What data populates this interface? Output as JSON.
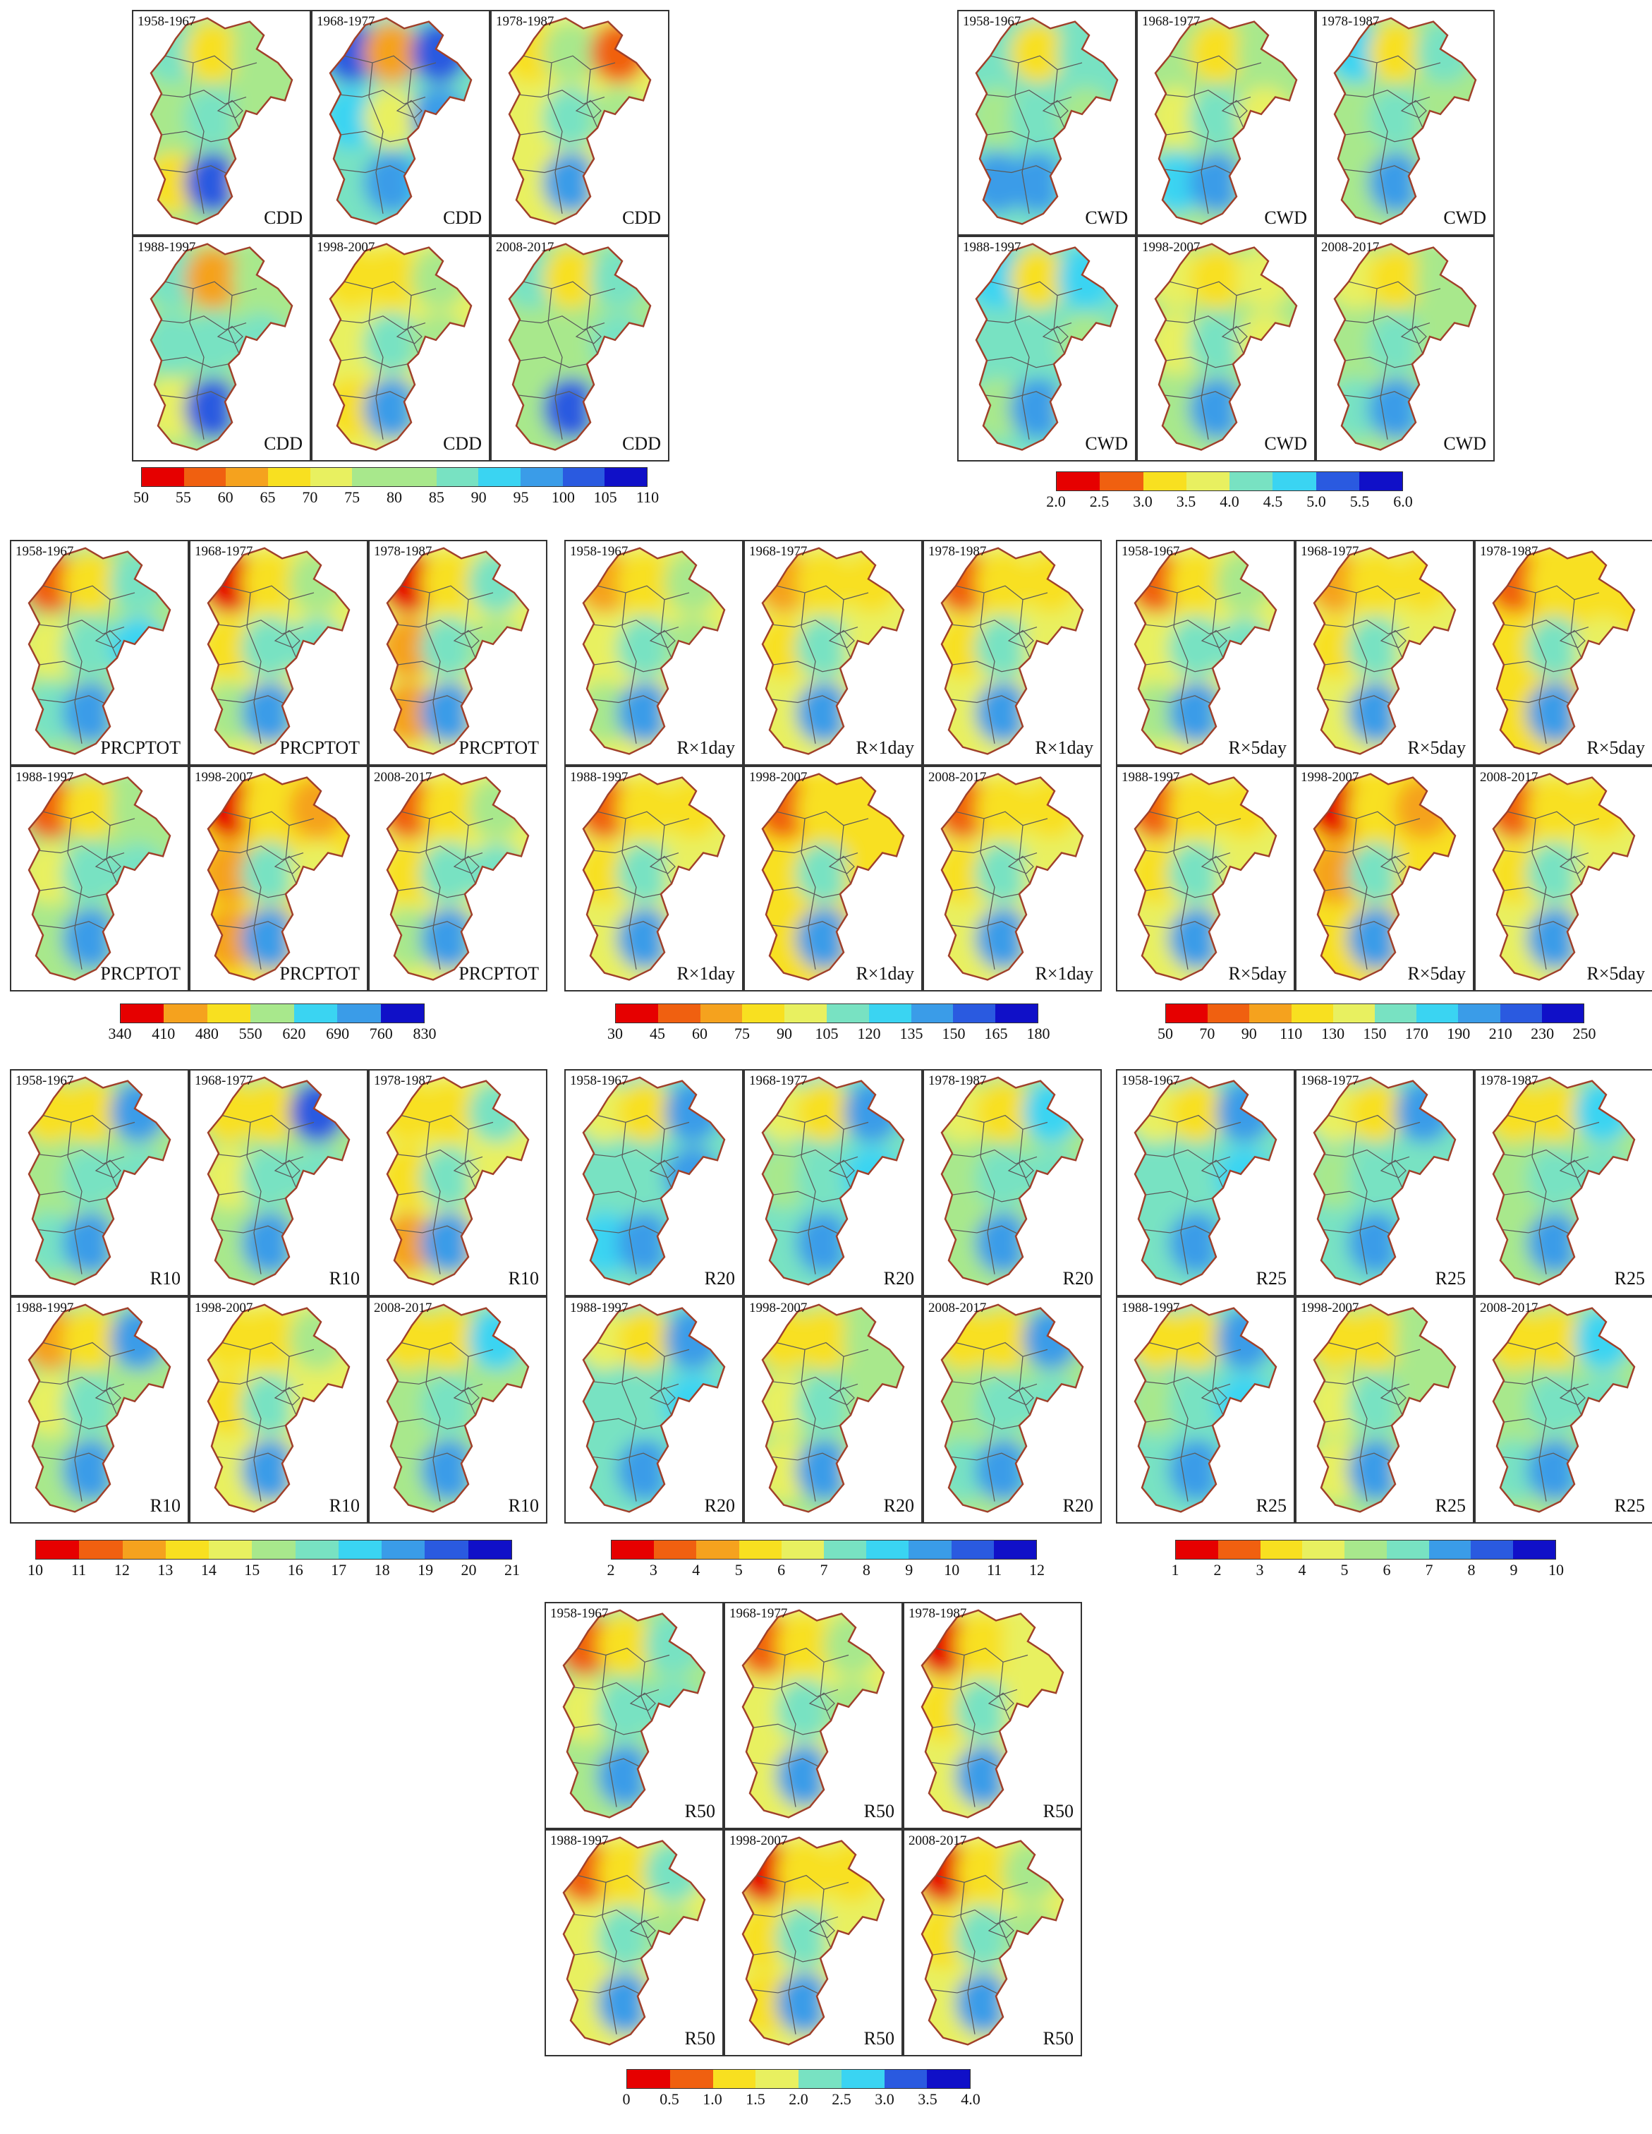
{
  "periods": [
    "1958-1967",
    "1968-1977",
    "1978-1987",
    "1988-1997",
    "1998-2007",
    "2008-2017"
  ],
  "palette": [
    "#e60000",
    "#f06010",
    "#f5a21e",
    "#f8e020",
    "#e8f060",
    "#a8e88c",
    "#78e2c2",
    "#3ad4f2",
    "#3a9ce8",
    "#2a5ae0",
    "#1010c8"
  ],
  "groups": [
    {
      "index": "CDD",
      "ticks": [
        "50",
        "55",
        "60",
        "65",
        "70",
        "75",
        "80",
        "85",
        "90",
        "95",
        "100",
        "105",
        "110"
      ],
      "heat": [
        [
          [
            0.55,
            0.25,
            0.45
          ],
          [
            0.5,
            0.55,
            0.5
          ],
          [
            0.3,
            0.85,
            0.4
          ]
        ],
        [
          [
            0.85,
            0.15,
            0.9
          ],
          [
            0.7,
            0.4,
            0.8
          ],
          [
            0.55,
            0.75,
            0.65
          ]
        ],
        [
          [
            0.3,
            0.5,
            0.1
          ],
          [
            0.4,
            0.6,
            0.45
          ],
          [
            0.35,
            0.8,
            0.4
          ]
        ],
        [
          [
            0.6,
            0.2,
            0.5
          ],
          [
            0.55,
            0.55,
            0.55
          ],
          [
            0.4,
            0.85,
            0.45
          ]
        ],
        [
          [
            0.3,
            0.3,
            0.45
          ],
          [
            0.35,
            0.55,
            0.5
          ],
          [
            0.3,
            0.8,
            0.45
          ]
        ],
        [
          [
            0.55,
            0.25,
            0.55
          ],
          [
            0.5,
            0.5,
            0.6
          ],
          [
            0.45,
            0.85,
            0.5
          ]
        ]
      ]
    },
    {
      "index": "CWD",
      "ticks": [
        "2.0",
        "2.5",
        "3.0",
        "3.5",
        "4.0",
        "4.5",
        "5.0",
        "5.5",
        "6.0"
      ],
      "heat": [
        [
          [
            0.6,
            0.3,
            0.6
          ],
          [
            0.5,
            0.6,
            0.5
          ],
          [
            0.75,
            0.8,
            0.6
          ]
        ],
        [
          [
            0.45,
            0.3,
            0.5
          ],
          [
            0.4,
            0.55,
            0.4
          ],
          [
            0.65,
            0.8,
            0.5
          ]
        ],
        [
          [
            0.7,
            0.25,
            0.6
          ],
          [
            0.5,
            0.55,
            0.45
          ],
          [
            0.45,
            0.8,
            0.5
          ]
        ],
        [
          [
            0.7,
            0.3,
            0.65
          ],
          [
            0.55,
            0.55,
            0.5
          ],
          [
            0.5,
            0.8,
            0.5
          ]
        ],
        [
          [
            0.35,
            0.3,
            0.4
          ],
          [
            0.35,
            0.55,
            0.35
          ],
          [
            0.45,
            0.8,
            0.5
          ]
        ],
        [
          [
            0.4,
            0.3,
            0.45
          ],
          [
            0.45,
            0.55,
            0.45
          ],
          [
            0.55,
            0.8,
            0.55
          ]
        ]
      ]
    },
    {
      "index": "PRCPTOT",
      "ticks": [
        "340",
        "410",
        "480",
        "550",
        "620",
        "690",
        "760",
        "830"
      ],
      "heat": [
        [
          [
            0.1,
            0.3,
            0.55
          ],
          [
            0.4,
            0.55,
            0.7
          ],
          [
            0.55,
            0.8,
            0.5
          ]
        ],
        [
          [
            0.0,
            0.3,
            0.5
          ],
          [
            0.3,
            0.55,
            0.6
          ],
          [
            0.45,
            0.8,
            0.45
          ]
        ],
        [
          [
            0.0,
            0.25,
            0.55
          ],
          [
            0.2,
            0.55,
            0.5
          ],
          [
            0.2,
            0.8,
            0.35
          ]
        ],
        [
          [
            0.1,
            0.3,
            0.5
          ],
          [
            0.35,
            0.55,
            0.6
          ],
          [
            0.45,
            0.8,
            0.45
          ]
        ],
        [
          [
            0.0,
            0.3,
            0.2
          ],
          [
            0.15,
            0.55,
            0.35
          ],
          [
            0.2,
            0.8,
            0.3
          ]
        ],
        [
          [
            0.05,
            0.3,
            0.45
          ],
          [
            0.3,
            0.55,
            0.55
          ],
          [
            0.45,
            0.8,
            0.45
          ]
        ]
      ]
    },
    {
      "index": "R×1day",
      "ticks": [
        "30",
        "45",
        "60",
        "75",
        "90",
        "105",
        "120",
        "135",
        "150",
        "165",
        "180"
      ],
      "heat": [
        [
          [
            0.15,
            0.3,
            0.45
          ],
          [
            0.35,
            0.55,
            0.5
          ],
          [
            0.45,
            0.8,
            0.4
          ]
        ],
        [
          [
            0.15,
            0.3,
            0.3
          ],
          [
            0.3,
            0.55,
            0.4
          ],
          [
            0.4,
            0.8,
            0.35
          ]
        ],
        [
          [
            0.05,
            0.3,
            0.3
          ],
          [
            0.3,
            0.55,
            0.4
          ],
          [
            0.35,
            0.8,
            0.35
          ]
        ],
        [
          [
            0.1,
            0.3,
            0.3
          ],
          [
            0.3,
            0.55,
            0.35
          ],
          [
            0.35,
            0.8,
            0.35
          ]
        ],
        [
          [
            0.05,
            0.3,
            0.25
          ],
          [
            0.25,
            0.55,
            0.3
          ],
          [
            0.3,
            0.8,
            0.3
          ]
        ],
        [
          [
            0.05,
            0.3,
            0.3
          ],
          [
            0.3,
            0.55,
            0.35
          ],
          [
            0.35,
            0.8,
            0.35
          ]
        ]
      ]
    },
    {
      "index": "R×5day",
      "ticks": [
        "50",
        "70",
        "90",
        "110",
        "130",
        "150",
        "170",
        "190",
        "210",
        "230",
        "250"
      ],
      "heat": [
        [
          [
            0.1,
            0.3,
            0.45
          ],
          [
            0.35,
            0.55,
            0.55
          ],
          [
            0.45,
            0.8,
            0.45
          ]
        ],
        [
          [
            0.15,
            0.3,
            0.3
          ],
          [
            0.3,
            0.55,
            0.4
          ],
          [
            0.35,
            0.8,
            0.35
          ]
        ],
        [
          [
            0.05,
            0.3,
            0.25
          ],
          [
            0.25,
            0.55,
            0.35
          ],
          [
            0.3,
            0.8,
            0.3
          ]
        ],
        [
          [
            0.1,
            0.3,
            0.3
          ],
          [
            0.3,
            0.55,
            0.4
          ],
          [
            0.35,
            0.8,
            0.35
          ]
        ],
        [
          [
            0.0,
            0.3,
            0.2
          ],
          [
            0.2,
            0.55,
            0.3
          ],
          [
            0.25,
            0.8,
            0.3
          ]
        ],
        [
          [
            0.05,
            0.3,
            0.3
          ],
          [
            0.25,
            0.55,
            0.35
          ],
          [
            0.35,
            0.8,
            0.35
          ]
        ]
      ]
    },
    {
      "index": "R10",
      "ticks": [
        "10",
        "11",
        "12",
        "13",
        "14",
        "15",
        "16",
        "17",
        "18",
        "19",
        "20",
        "21"
      ],
      "heat": [
        [
          [
            0.3,
            0.3,
            0.75
          ],
          [
            0.45,
            0.55,
            0.55
          ],
          [
            0.55,
            0.8,
            0.5
          ]
        ],
        [
          [
            0.25,
            0.3,
            0.85
          ],
          [
            0.4,
            0.55,
            0.55
          ],
          [
            0.5,
            0.8,
            0.45
          ]
        ],
        [
          [
            0.25,
            0.3,
            0.6
          ],
          [
            0.3,
            0.55,
            0.4
          ],
          [
            0.2,
            0.8,
            0.3
          ]
        ],
        [
          [
            0.2,
            0.3,
            0.75
          ],
          [
            0.4,
            0.55,
            0.5
          ],
          [
            0.5,
            0.8,
            0.5
          ]
        ],
        [
          [
            0.25,
            0.3,
            0.5
          ],
          [
            0.3,
            0.55,
            0.35
          ],
          [
            0.35,
            0.8,
            0.35
          ]
        ],
        [
          [
            0.3,
            0.3,
            0.65
          ],
          [
            0.45,
            0.55,
            0.5
          ],
          [
            0.5,
            0.8,
            0.5
          ]
        ]
      ]
    },
    {
      "index": "R20",
      "ticks": [
        "2",
        "3",
        "4",
        "5",
        "6",
        "7",
        "8",
        "9",
        "10",
        "11",
        "12"
      ],
      "heat": [
        [
          [
            0.35,
            0.3,
            0.8
          ],
          [
            0.6,
            0.55,
            0.75
          ],
          [
            0.65,
            0.8,
            0.6
          ]
        ],
        [
          [
            0.35,
            0.3,
            0.8
          ],
          [
            0.5,
            0.55,
            0.65
          ],
          [
            0.55,
            0.8,
            0.55
          ]
        ],
        [
          [
            0.35,
            0.3,
            0.65
          ],
          [
            0.45,
            0.55,
            0.55
          ],
          [
            0.45,
            0.8,
            0.45
          ]
        ],
        [
          [
            0.35,
            0.3,
            0.8
          ],
          [
            0.55,
            0.55,
            0.7
          ],
          [
            0.6,
            0.8,
            0.6
          ]
        ],
        [
          [
            0.3,
            0.3,
            0.5
          ],
          [
            0.4,
            0.55,
            0.45
          ],
          [
            0.4,
            0.8,
            0.4
          ]
        ],
        [
          [
            0.3,
            0.3,
            0.75
          ],
          [
            0.5,
            0.55,
            0.6
          ],
          [
            0.55,
            0.8,
            0.55
          ]
        ]
      ]
    },
    {
      "index": "R25",
      "ticks": [
        "1",
        "2",
        "3",
        "4",
        "5",
        "6",
        "7",
        "8",
        "9",
        "10"
      ],
      "heat": [
        [
          [
            0.35,
            0.3,
            0.75
          ],
          [
            0.55,
            0.55,
            0.65
          ],
          [
            0.6,
            0.8,
            0.55
          ]
        ],
        [
          [
            0.35,
            0.3,
            0.75
          ],
          [
            0.5,
            0.55,
            0.6
          ],
          [
            0.55,
            0.8,
            0.55
          ]
        ],
        [
          [
            0.3,
            0.3,
            0.65
          ],
          [
            0.45,
            0.55,
            0.55
          ],
          [
            0.45,
            0.8,
            0.45
          ]
        ],
        [
          [
            0.3,
            0.3,
            0.75
          ],
          [
            0.5,
            0.55,
            0.65
          ],
          [
            0.55,
            0.8,
            0.55
          ]
        ],
        [
          [
            0.25,
            0.3,
            0.5
          ],
          [
            0.4,
            0.55,
            0.45
          ],
          [
            0.4,
            0.8,
            0.4
          ]
        ],
        [
          [
            0.25,
            0.3,
            0.7
          ],
          [
            0.5,
            0.55,
            0.6
          ],
          [
            0.55,
            0.8,
            0.55
          ]
        ]
      ]
    },
    {
      "index": "R50",
      "ticks": [
        "0",
        "0.5",
        "1.0",
        "1.5",
        "2.0",
        "2.5",
        "3.0",
        "3.5",
        "4.0"
      ],
      "heat": [
        [
          [
            0.1,
            0.3,
            0.6
          ],
          [
            0.4,
            0.55,
            0.55
          ],
          [
            0.45,
            0.8,
            0.45
          ]
        ],
        [
          [
            0.1,
            0.3,
            0.5
          ],
          [
            0.35,
            0.55,
            0.45
          ],
          [
            0.4,
            0.8,
            0.4
          ]
        ],
        [
          [
            0.0,
            0.3,
            0.4
          ],
          [
            0.3,
            0.55,
            0.4
          ],
          [
            0.35,
            0.8,
            0.35
          ]
        ],
        [
          [
            0.05,
            0.3,
            0.55
          ],
          [
            0.35,
            0.55,
            0.5
          ],
          [
            0.4,
            0.8,
            0.4
          ]
        ],
        [
          [
            0.0,
            0.3,
            0.3
          ],
          [
            0.25,
            0.55,
            0.35
          ],
          [
            0.3,
            0.8,
            0.35
          ]
        ],
        [
          [
            0.0,
            0.3,
            0.45
          ],
          [
            0.3,
            0.55,
            0.45
          ],
          [
            0.4,
            0.8,
            0.4
          ]
        ]
      ]
    }
  ]
}
